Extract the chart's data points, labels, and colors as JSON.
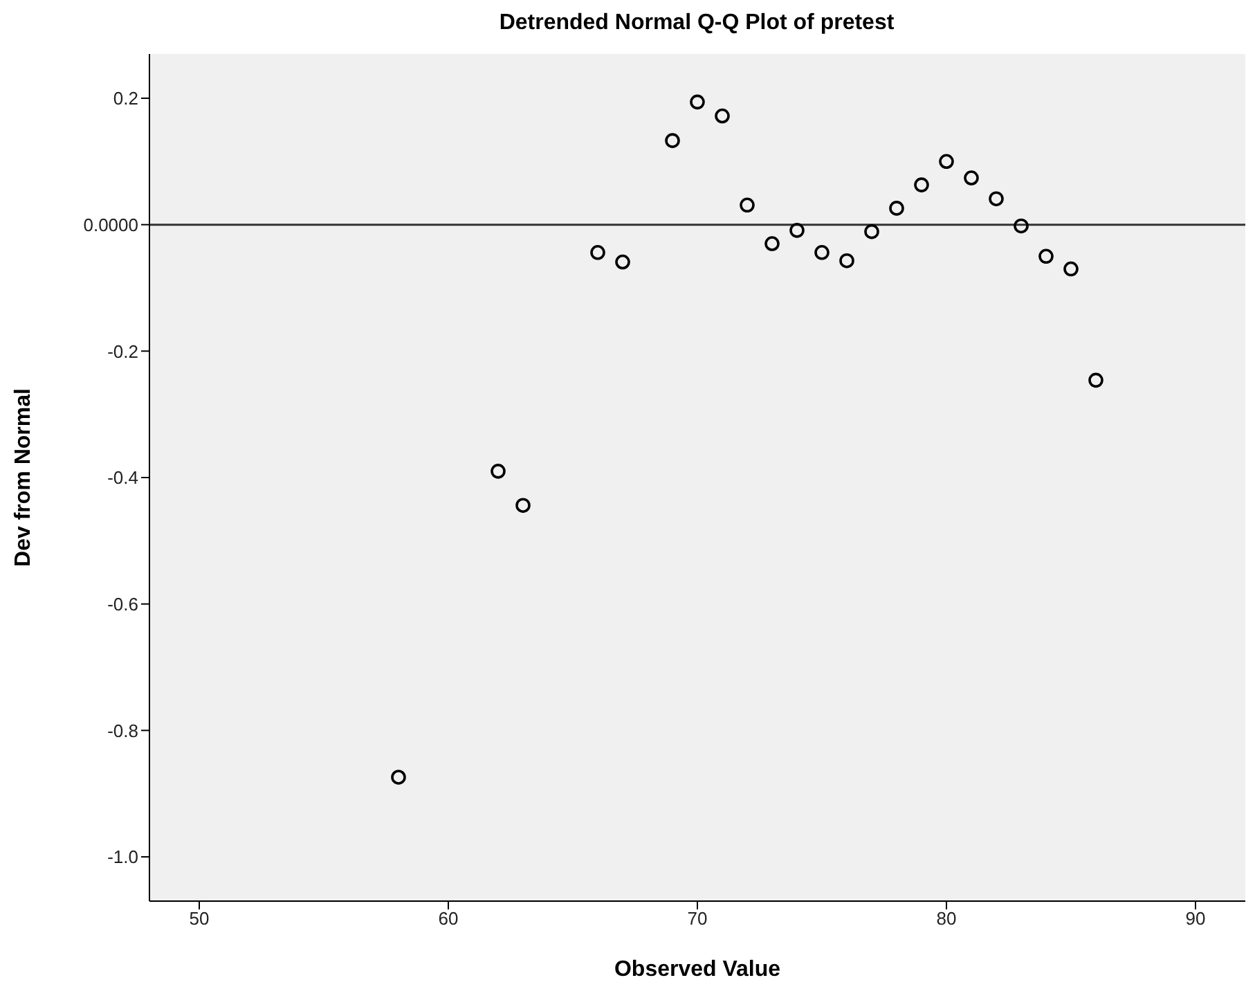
{
  "chart_data": {
    "type": "scatter",
    "title": "Detrended Normal Q-Q Plot of pretest",
    "xlabel": "Observed Value",
    "ylabel": "Dev from Normal",
    "x": [
      58,
      62,
      63,
      66,
      67,
      69,
      70,
      71,
      72,
      73,
      74,
      75,
      76,
      77,
      78,
      79,
      80,
      81,
      82,
      83,
      84,
      85,
      86
    ],
    "series": [
      {
        "color": "#000000",
        "values": [
          -0.874,
          -0.39,
          -0.444,
          -0.044,
          -0.059,
          0.133,
          0.194,
          0.172,
          0.031,
          -0.03,
          -0.009,
          -0.044,
          -0.057,
          -0.011,
          0.026,
          0.063,
          0.1,
          0.074,
          0.041,
          -0.002,
          -0.05,
          -0.07,
          -0.246
        ]
      }
    ],
    "xlim": [
      48,
      92
    ],
    "xticks": [
      50,
      60,
      70,
      80,
      90
    ],
    "ylim": [
      -1.07,
      0.27
    ],
    "yticks": [
      {
        "value": 0.2,
        "label": "0.2"
      },
      {
        "value": 0,
        "label": "0.0000"
      },
      {
        "value": -0.2,
        "label": "-0.2"
      },
      {
        "value": -0.4,
        "label": "-0.4"
      },
      {
        "value": -0.6,
        "label": "-0.6"
      },
      {
        "value": -0.8,
        "label": "-0.8"
      },
      {
        "value": -1,
        "label": "-1.0"
      }
    ],
    "ref_lines": [
      {
        "axis": "y",
        "value": 0,
        "color": "#333333"
      }
    ],
    "grid": false,
    "legend": false,
    "marker": "circle"
  }
}
